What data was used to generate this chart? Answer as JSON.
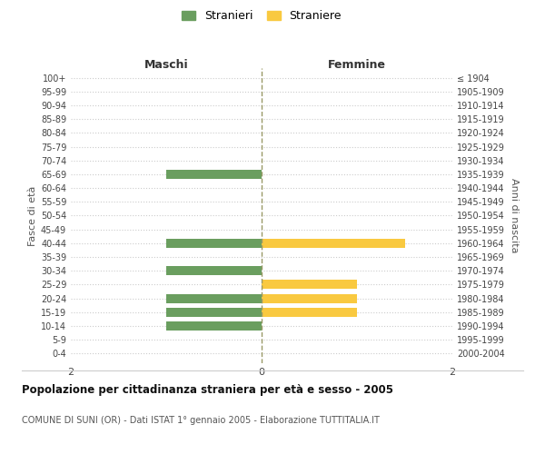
{
  "age_groups": [
    "0-4",
    "5-9",
    "10-14",
    "15-19",
    "20-24",
    "25-29",
    "30-34",
    "35-39",
    "40-44",
    "45-49",
    "50-54",
    "55-59",
    "60-64",
    "65-69",
    "70-74",
    "75-79",
    "80-84",
    "85-89",
    "90-94",
    "95-99",
    "100+"
  ],
  "birth_years": [
    "2000-2004",
    "1995-1999",
    "1990-1994",
    "1985-1989",
    "1980-1984",
    "1975-1979",
    "1970-1974",
    "1965-1969",
    "1960-1964",
    "1955-1959",
    "1950-1954",
    "1945-1949",
    "1940-1944",
    "1935-1939",
    "1930-1934",
    "1925-1929",
    "1920-1924",
    "1915-1919",
    "1910-1914",
    "1905-1909",
    "≤ 1904"
  ],
  "males": [
    0,
    0,
    1,
    1,
    1,
    0,
    1,
    0,
    1,
    0,
    0,
    0,
    0,
    1,
    0,
    0,
    0,
    0,
    0,
    0,
    0
  ],
  "females": [
    0,
    0,
    0,
    1,
    1,
    1,
    0,
    0,
    1.5,
    0,
    0,
    0,
    0,
    0,
    0,
    0,
    0,
    0,
    0,
    0,
    0
  ],
  "color_male": "#6a9e5f",
  "color_female": "#f9c940",
  "title": "Popolazione per cittadinanza straniera per età e sesso - 2005",
  "subtitle": "COMUNE DI SUNI (OR) - Dati ISTAT 1° gennaio 2005 - Elaborazione TUTTITALIA.IT",
  "legend_male": "Stranieri",
  "legend_female": "Straniere",
  "xlabel_left": "Maschi",
  "xlabel_right": "Femmine",
  "ylabel_left": "Fasce di età",
  "ylabel_right": "Anni di nascita",
  "xlim": 2,
  "background_color": "#ffffff",
  "grid_color": "#cccccc",
  "dashed_line_color": "#999966"
}
